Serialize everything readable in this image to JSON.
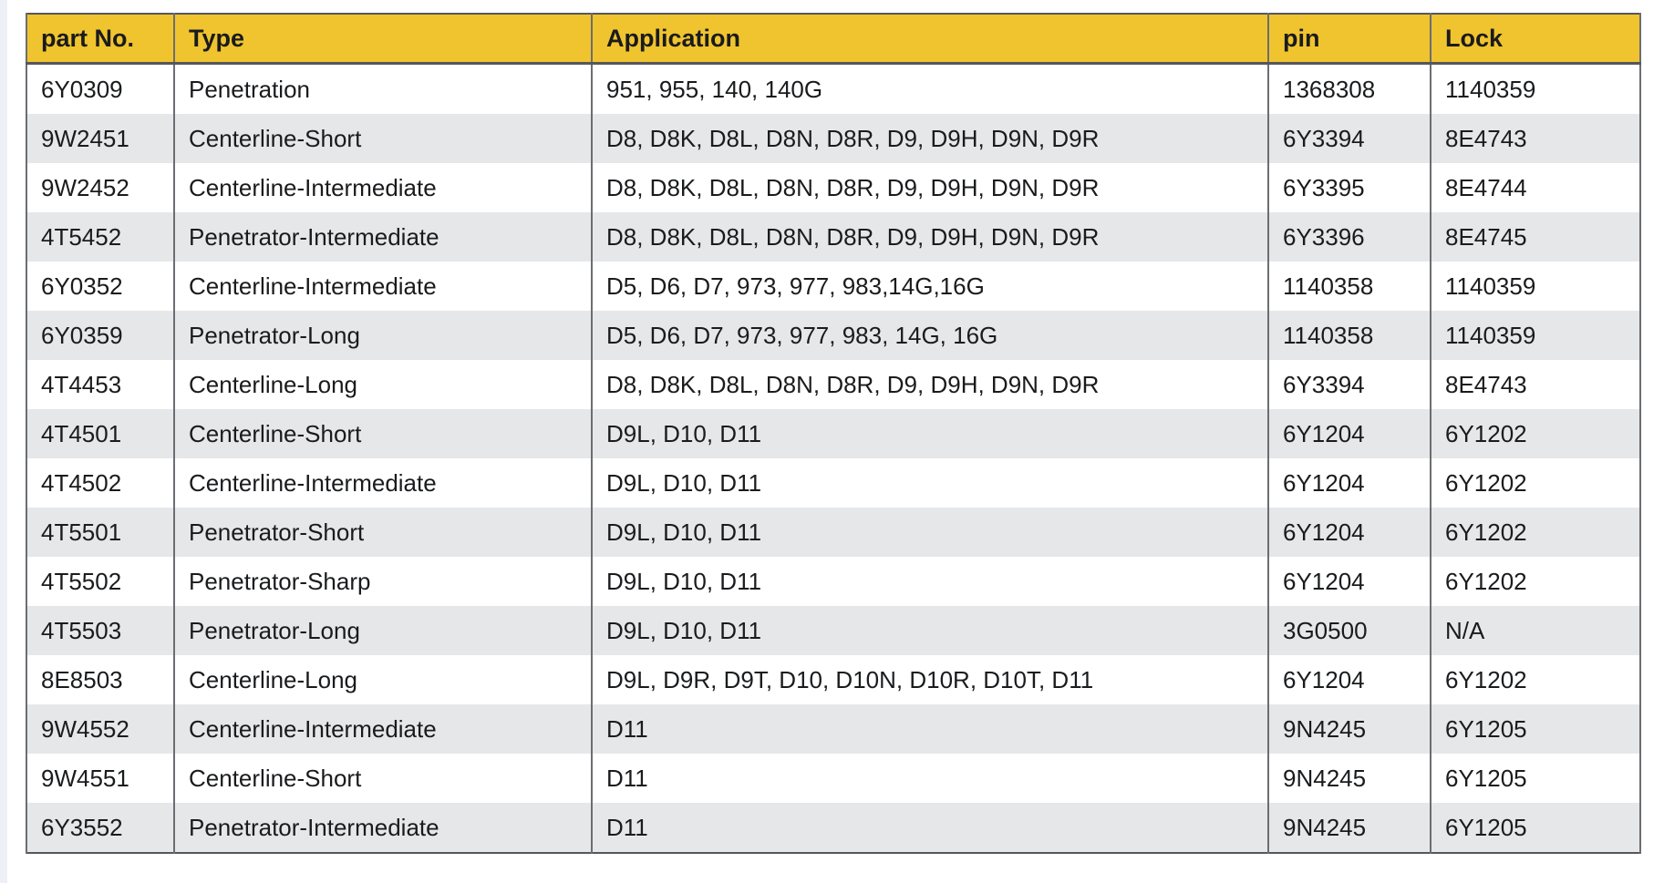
{
  "colors": {
    "header_bg": "#F0C42F",
    "row_alt": "#E6E7E9",
    "row_main": "#FFFFFF",
    "border_outer": "#55575B",
    "border_inner": "#6B6D72",
    "text": "#1A1B1D",
    "page_edge": "#EDF0F6"
  },
  "table": {
    "headers": [
      "part No.",
      "Type",
      "Application",
      "pin",
      "Lock"
    ],
    "rows": [
      [
        "6Y0309",
        "Penetration",
        "951, 955, 140, 140G",
        "1368308",
        "1140359"
      ],
      [
        "9W2451",
        "Centerline-Short",
        "D8, D8K, D8L, D8N, D8R, D9, D9H, D9N, D9R",
        "6Y3394",
        "8E4743"
      ],
      [
        "9W2452",
        "Centerline-Intermediate",
        "D8, D8K, D8L, D8N, D8R, D9, D9H, D9N, D9R",
        "6Y3395",
        "8E4744"
      ],
      [
        "4T5452",
        "Penetrator-Intermediate",
        "D8, D8K, D8L, D8N, D8R, D9, D9H, D9N, D9R",
        "6Y3396",
        "8E4745"
      ],
      [
        "6Y0352",
        "Centerline-Intermediate",
        "D5, D6, D7, 973, 977, 983,14G,16G",
        "1140358",
        "1140359"
      ],
      [
        "6Y0359",
        "Penetrator-Long",
        "D5, D6, D7, 973, 977, 983, 14G, 16G",
        "1140358",
        "1140359"
      ],
      [
        "4T4453",
        "Centerline-Long",
        "D8, D8K, D8L, D8N, D8R, D9, D9H, D9N, D9R",
        "6Y3394",
        "8E4743"
      ],
      [
        "4T4501",
        "Centerline-Short",
        "D9L, D10, D11",
        "6Y1204",
        "6Y1202"
      ],
      [
        "4T4502",
        "Centerline-Intermediate",
        "D9L, D10, D11",
        "6Y1204",
        "6Y1202"
      ],
      [
        "4T5501",
        "Penetrator-Short",
        "D9L, D10, D11",
        "6Y1204",
        "6Y1202"
      ],
      [
        "4T5502",
        "Penetrator-Sharp",
        "D9L, D10, D11",
        "6Y1204",
        "6Y1202"
      ],
      [
        "4T5503",
        "Penetrator-Long",
        "D9L, D10, D11",
        "3G0500",
        "N/A"
      ],
      [
        "8E8503",
        "Centerline-Long",
        "D9L, D9R, D9T, D10, D10N, D10R, D10T, D11",
        "6Y1204",
        "6Y1202"
      ],
      [
        "9W4552",
        "Centerline-Intermediate",
        "D11",
        "9N4245",
        "6Y1205"
      ],
      [
        "9W4551",
        "Centerline-Short",
        "D11",
        "9N4245",
        "6Y1205"
      ],
      [
        "6Y3552",
        "Penetrator-Intermediate",
        "D11",
        "9N4245",
        "6Y1205"
      ]
    ]
  }
}
